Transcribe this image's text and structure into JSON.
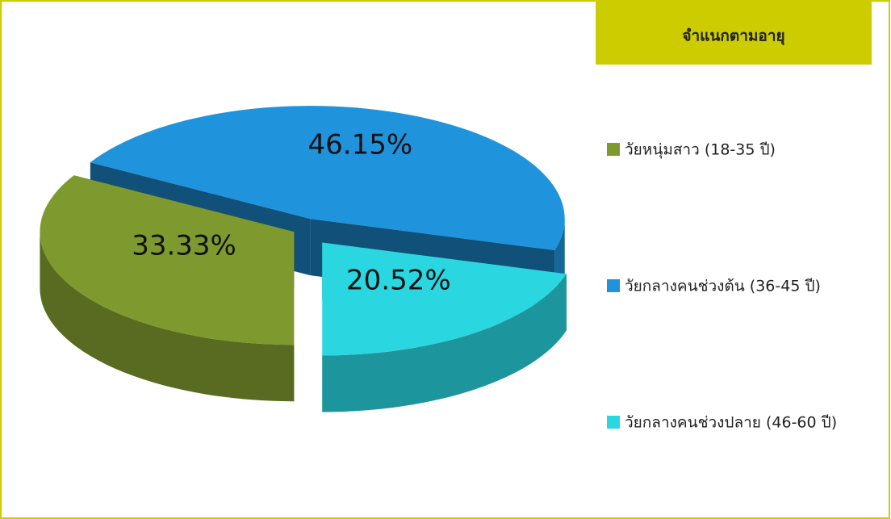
{
  "chart_data": {
    "type": "pie3d",
    "title": "จำแนกตามอายุ",
    "categories": [
      "วัยหนุ่มสาว (18-35 ปี)",
      "วัยกลางคนช่วงต้น (36-45 ปี)",
      "วัยกลางคนช่วงปลาย (46-60 ปี)"
    ],
    "values": [
      33.33,
      46.15,
      20.52
    ],
    "value_labels": [
      "33.33%",
      "46.15%",
      "20.52%"
    ],
    "colors": [
      "#7e9a2f",
      "#1f93dc",
      "#2ad6e0"
    ],
    "legend": "right"
  }
}
